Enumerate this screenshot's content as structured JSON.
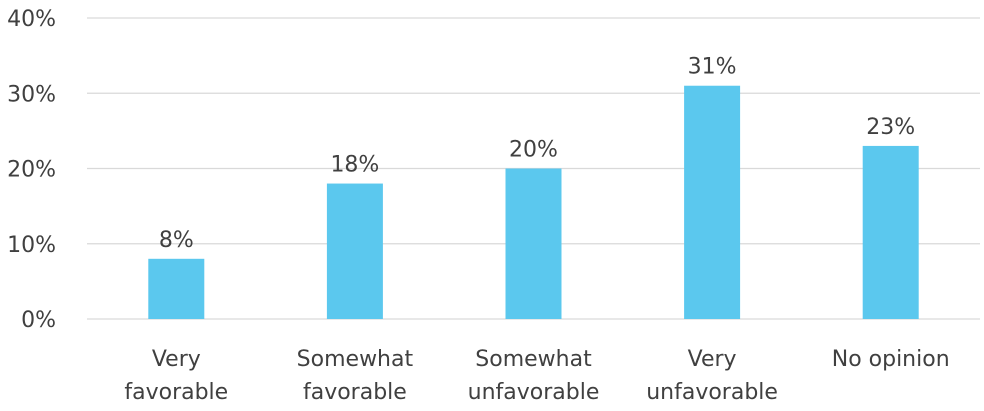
{
  "chart_data": {
    "type": "bar",
    "categories": [
      [
        "Very",
        "favorable"
      ],
      [
        "Somewhat",
        "favorable"
      ],
      [
        "Somewhat",
        "unfavorable"
      ],
      [
        "Very",
        "unfavorable"
      ],
      [
        "No opinion"
      ]
    ],
    "values": [
      8,
      18,
      20,
      31,
      23
    ],
    "data_labels": [
      "8%",
      "18%",
      "20%",
      "31%",
      "23%"
    ],
    "ylim": [
      0,
      40
    ],
    "yticks": [
      0,
      10,
      20,
      30,
      40
    ],
    "ytick_labels": [
      "0%",
      "10%",
      "20%",
      "30%",
      "40%"
    ],
    "grid": true,
    "bar_color": "#5bc8ee",
    "gridline_color": "#d9d9d9",
    "text_color": "#404040"
  }
}
